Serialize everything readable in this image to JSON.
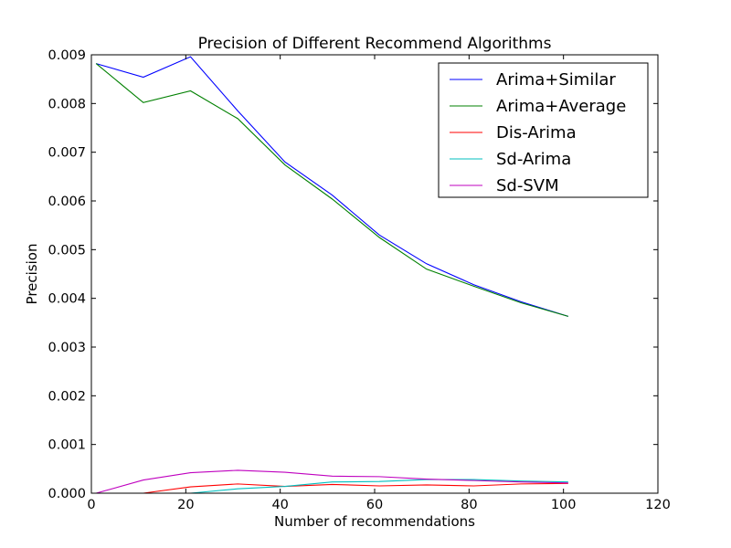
{
  "chart_data": {
    "type": "line",
    "title": "Precision of Different Recommend Algorithms",
    "xlabel": "Number of recommendations",
    "ylabel": "Precision",
    "xlim": [
      0,
      120
    ],
    "ylim": [
      0,
      0.009
    ],
    "xticks": [
      0,
      20,
      40,
      60,
      80,
      100,
      120
    ],
    "xtick_labels": [
      "0",
      "20",
      "40",
      "60",
      "80",
      "100",
      "120"
    ],
    "yticks": [
      0,
      0.001,
      0.002,
      0.003,
      0.004,
      0.005,
      0.006,
      0.007,
      0.008,
      0.009
    ],
    "ytick_labels": [
      "0.000",
      "0.001",
      "0.002",
      "0.003",
      "0.004",
      "0.005",
      "0.006",
      "0.007",
      "0.008",
      "0.009"
    ],
    "grid": false,
    "legend_position": "top-right",
    "x": [
      1,
      11,
      21,
      31,
      41,
      51,
      61,
      71,
      81,
      91,
      101
    ],
    "series": [
      {
        "name": "Arima+Similar",
        "color": "#0000ff",
        "values": [
          0.00882,
          0.00854,
          0.00896,
          0.00785,
          0.0068,
          0.00612,
          0.0053,
          0.00471,
          0.00428,
          0.00393,
          0.00363
        ]
      },
      {
        "name": "Arima+Average",
        "color": "#008000",
        "values": [
          0.00882,
          0.00802,
          0.00826,
          0.00769,
          0.00674,
          0.00604,
          0.00525,
          0.0046,
          0.00425,
          0.00391,
          0.00363
        ]
      },
      {
        "name": "Dis-Arima",
        "color": "#ff0000",
        "values": [
          0.0,
          0.0,
          0.00013,
          0.00019,
          0.00014,
          0.00018,
          0.00015,
          0.00017,
          0.00015,
          0.00019,
          0.0002
        ]
      },
      {
        "name": "Sd-Arima",
        "color": "#00bfbf",
        "values": [
          0.0,
          0.0,
          0.0,
          9e-05,
          0.00014,
          0.00023,
          0.00024,
          0.00028,
          0.00028,
          0.00025,
          0.00023
        ]
      },
      {
        "name": "Sd-SVM",
        "color": "#bf00bf",
        "values": [
          0.0,
          0.00027,
          0.00042,
          0.00047,
          0.00043,
          0.00035,
          0.00034,
          0.00029,
          0.00026,
          0.00023,
          0.00021
        ]
      }
    ]
  }
}
